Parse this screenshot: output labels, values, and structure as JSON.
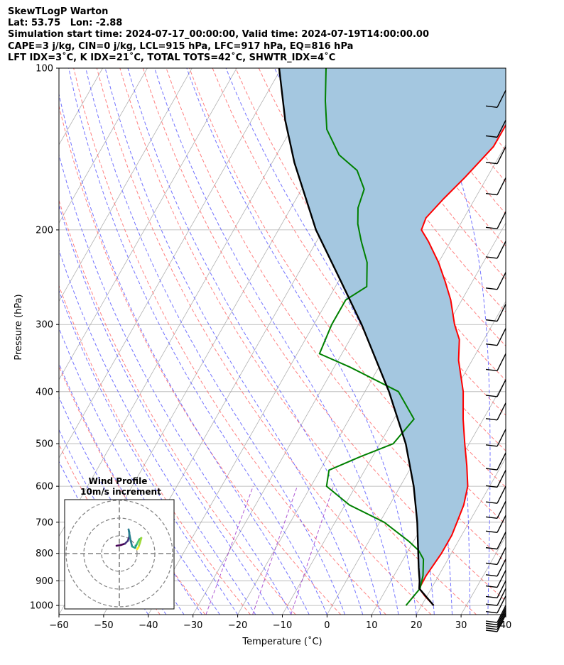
{
  "header": {
    "line1": "SkewTLogP Warton",
    "line2": "Lat: 53.75   Lon: -2.88",
    "line3": "Simulation start time: 2024-07-17_00:00:00, Valid time: 2024-07-19T14:00:00.00",
    "line4": "CAPE=3 j/kg, CIN=0 j/kg, LCL=915 hPa, LFC=917 hPa, EQ=816 hPa",
    "line5": "LFT IDX=3˚C, K IDX=21˚C, TOTAL TOTS=42˚C, SHWTR_IDX=4˚C"
  },
  "chart_data": {
    "type": "skew-t log-p",
    "xlabel": "Temperature (˚C)",
    "ylabel": "Pressure (hPa)",
    "xlim": [
      -60,
      40
    ],
    "ylim": [
      1040,
      100
    ],
    "x_scale": "linear (skewed)",
    "y_scale": "log",
    "x_ticks": [
      -60,
      -50,
      -40,
      -30,
      -20,
      -10,
      0,
      10,
      20,
      30,
      40
    ],
    "x_tick_labels": [
      "−60",
      "−50",
      "−40",
      "−30",
      "−20",
      "−10",
      "0",
      "10",
      "20",
      "30",
      "40"
    ],
    "y_ticks": [
      1000,
      900,
      800,
      700,
      600,
      500,
      400,
      300,
      200,
      100
    ],
    "y_tick_labels": [
      "1000",
      "900",
      "800",
      "700",
      "600",
      "500",
      "400",
      "300",
      "200",
      "100"
    ],
    "grid": true,
    "colors": {
      "temperature": "#ff0000",
      "dewpoint": "#008000",
      "parcel": "#000000",
      "cape_fill": "#a4c7e0",
      "dry_adiabat": "#ff6b6b",
      "moist_adiabat": "#5c5cff",
      "mixing_ratio": "#9b30c8",
      "isotherm": "#b0b0b0",
      "wind_barb": "#000000"
    },
    "series": [
      {
        "name": "temperature",
        "points": [
          [
            1000,
            22.7
          ],
          [
            960,
            19.5
          ],
          [
            930,
            17.3
          ],
          [
            880,
            17.2
          ],
          [
            800,
            17.8
          ],
          [
            740,
            17.8
          ],
          [
            700,
            17.3
          ],
          [
            650,
            16.6
          ],
          [
            600,
            15.1
          ],
          [
            550,
            12.3
          ],
          [
            500,
            9.0
          ],
          [
            450,
            5.5
          ],
          [
            400,
            2.0
          ],
          [
            350,
            -3.0
          ],
          [
            320,
            -5.5
          ],
          [
            300,
            -8.5
          ],
          [
            270,
            -12.5
          ],
          [
            250,
            -16.0
          ],
          [
            230,
            -20.0
          ],
          [
            210,
            -25.0
          ],
          [
            200,
            -28.0
          ],
          [
            190,
            -28.5
          ],
          [
            175,
            -27.0
          ],
          [
            160,
            -25.0
          ],
          [
            140,
            -22.5
          ],
          [
            125,
            -22.5
          ],
          [
            110,
            -22.5
          ],
          [
            100,
            -23.0
          ]
        ]
      },
      {
        "name": "dewpoint",
        "points": [
          [
            1000,
            16.5
          ],
          [
            930,
            17.5
          ],
          [
            880,
            16.5
          ],
          [
            820,
            14.5
          ],
          [
            790,
            12.3
          ],
          [
            760,
            9.0
          ],
          [
            700,
            1.0
          ],
          [
            650,
            -9.0
          ],
          [
            600,
            -16.5
          ],
          [
            560,
            -18.0
          ],
          [
            530,
            -13.0
          ],
          [
            500,
            -7.0
          ],
          [
            450,
            -5.5
          ],
          [
            400,
            -12.5
          ],
          [
            360,
            -26.5
          ],
          [
            340,
            -35.0
          ],
          [
            300,
            -36.0
          ],
          [
            270,
            -36.0
          ],
          [
            255,
            -33.0
          ],
          [
            230,
            -36.0
          ],
          [
            210,
            -40.0
          ],
          [
            195,
            -43.0
          ],
          [
            182,
            -45.0
          ],
          [
            168,
            -46.0
          ],
          [
            155,
            -50.0
          ],
          [
            145,
            -56.0
          ],
          [
            130,
            -62.0
          ],
          [
            115,
            -66.0
          ],
          [
            100,
            -70.0
          ]
        ]
      },
      {
        "name": "parcel",
        "points": [
          [
            1000,
            22.7
          ],
          [
            930,
            17.3
          ],
          [
            900,
            16.4
          ],
          [
            850,
            14.5
          ],
          [
            800,
            12.6
          ],
          [
            700,
            8.4
          ],
          [
            600,
            3.0
          ],
          [
            500,
            -4.2
          ],
          [
            400,
            -14.6
          ],
          [
            300,
            -29.3
          ],
          [
            250,
            -39.3
          ],
          [
            200,
            -51.6
          ],
          [
            150,
            -65.0
          ],
          [
            125,
            -72.5
          ],
          [
            100,
            -80.5
          ]
        ]
      }
    ],
    "wind_barbs_pressure": [
      1040,
      1030,
      1020,
      1010,
      1000,
      960,
      930,
      900,
      860,
      820,
      780,
      730,
      680,
      640,
      600,
      560,
      520,
      470,
      420,
      380,
      340,
      305,
      275,
      240,
      210,
      185,
      160,
      140,
      125,
      110
    ],
    "inset": {
      "title": "Wind Profile",
      "subtitle": "10m/s increment"
    }
  }
}
